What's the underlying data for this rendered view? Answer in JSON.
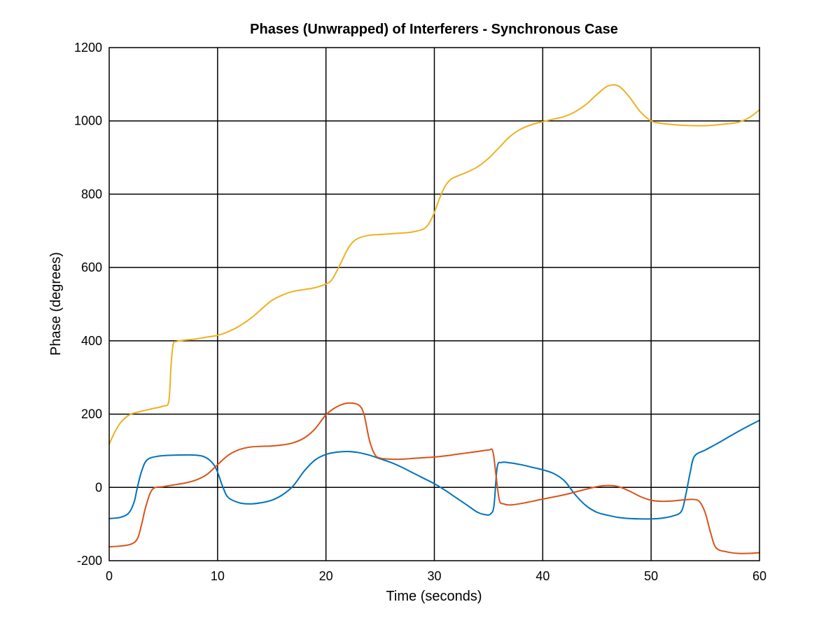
{
  "chart_data": {
    "type": "line",
    "title": "Phases (Unwrapped) of Interferers - Synchronous Case",
    "xlabel": "Time (seconds)",
    "ylabel": "Phase (degrees)",
    "xlim": [
      0,
      60
    ],
    "ylim": [
      -200,
      1200
    ],
    "xticks": [
      0,
      10,
      20,
      30,
      40,
      50,
      60
    ],
    "yticks": [
      -200,
      0,
      200,
      400,
      600,
      800,
      1000,
      1200
    ],
    "grid": true,
    "legend": "none",
    "series": [
      {
        "color": "#0072BD",
        "x": [
          0,
          1,
          1.8,
          2.3,
          2.6,
          3,
          3.5,
          4.5,
          6,
          8,
          9,
          9.8,
          10.5,
          11,
          12,
          13,
          14,
          15,
          16,
          17,
          18,
          19,
          20,
          21,
          22,
          23,
          24,
          25,
          26,
          27,
          28,
          29,
          30,
          31,
          32,
          33,
          34,
          34.8,
          35.2,
          35.5,
          35.8,
          36.2,
          37,
          38,
          39,
          40,
          41,
          42,
          43,
          44,
          45,
          46,
          47,
          48,
          49,
          50,
          51,
          52,
          52.8,
          53.2,
          53.6,
          54,
          55,
          56,
          57,
          58,
          59,
          60
        ],
        "y": [
          -85,
          -82,
          -70,
          -40,
          0,
          45,
          75,
          85,
          88,
          88,
          80,
          55,
          0,
          -28,
          -42,
          -45,
          -42,
          -35,
          -20,
          5,
          45,
          75,
          90,
          96,
          98,
          95,
          88,
          78,
          68,
          55,
          40,
          25,
          10,
          -8,
          -28,
          -48,
          -68,
          -75,
          -72,
          -50,
          55,
          68,
          67,
          62,
          55,
          48,
          38,
          18,
          -20,
          -50,
          -68,
          -76,
          -82,
          -85,
          -86,
          -86,
          -84,
          -78,
          -65,
          -20,
          40,
          85,
          102,
          118,
          135,
          152,
          168,
          183
        ]
      },
      {
        "color": "#D95319",
        "x": [
          0,
          1,
          2,
          2.6,
          3,
          3.4,
          4,
          5,
          6,
          7,
          8,
          9,
          10,
          11,
          12,
          13,
          14,
          15,
          16,
          17,
          18,
          19,
          20,
          21,
          22,
          23,
          23.5,
          24,
          24.5,
          25,
          26,
          27,
          28,
          29,
          30,
          31,
          32,
          33,
          34,
          35,
          35.4,
          35.7,
          36,
          36.4,
          37,
          38,
          40,
          42,
          44,
          45,
          46,
          47,
          48,
          49,
          50,
          51,
          52,
          53,
          54,
          54.5,
          55,
          55.5,
          56,
          57,
          58,
          59,
          60
        ],
        "y": [
          -162,
          -160,
          -155,
          -140,
          -100,
          -50,
          -5,
          2,
          7,
          12,
          20,
          35,
          62,
          88,
          103,
          110,
          112,
          113,
          116,
          122,
          135,
          160,
          198,
          220,
          230,
          225,
          200,
          130,
          90,
          80,
          77,
          77,
          79,
          81,
          83,
          86,
          90,
          94,
          98,
          102,
          98,
          30,
          -35,
          -45,
          -48,
          -44,
          -32,
          -20,
          -5,
          2,
          5,
          2,
          -10,
          -25,
          -35,
          -38,
          -37,
          -34,
          -33,
          -40,
          -70,
          -125,
          -165,
          -176,
          -180,
          -180,
          -178
        ]
      },
      {
        "color": "#EDB120",
        "x": [
          0,
          0.5,
          1,
          1.5,
          2,
          3,
          4,
          5,
          5.5,
          5.7,
          5.9,
          6.2,
          7,
          8,
          9,
          10,
          11,
          12,
          13,
          14,
          15,
          16,
          17,
          18,
          19,
          20,
          20.5,
          21,
          21.5,
          22,
          22.5,
          23,
          24,
          25,
          26,
          27,
          28,
          29,
          29.5,
          30,
          30.5,
          31,
          31.5,
          32,
          33,
          34,
          35,
          36,
          37,
          38,
          39,
          40,
          41,
          42,
          43,
          44,
          45,
          46,
          47,
          48,
          49,
          50,
          51,
          52,
          53,
          54,
          55,
          56,
          57,
          58,
          59,
          60
        ],
        "y": [
          118,
          150,
          175,
          190,
          200,
          208,
          215,
          222,
          235,
          330,
          390,
          398,
          402,
          405,
          410,
          415,
          425,
          440,
          460,
          485,
          510,
          525,
          535,
          540,
          545,
          555,
          565,
          590,
          620,
          650,
          670,
          680,
          688,
          690,
          692,
          694,
          697,
          705,
          720,
          750,
          790,
          822,
          840,
          848,
          860,
          875,
          898,
          928,
          958,
          978,
          990,
          998,
          1005,
          1012,
          1025,
          1045,
          1072,
          1095,
          1095,
          1065,
          1025,
          1000,
          993,
          990,
          988,
          987,
          987,
          989,
          992,
          996,
          1008,
          1030
        ]
      }
    ]
  }
}
